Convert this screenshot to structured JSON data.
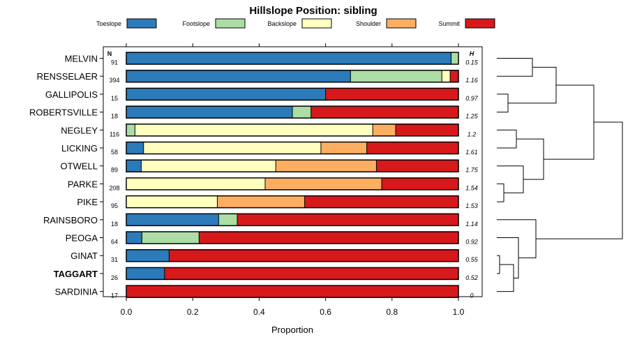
{
  "chart_data": {
    "type": "bar",
    "orientation": "horizontal-stacked",
    "title": "Hillslope Position: sibling",
    "xlabel": "Proportion",
    "ylabel": "",
    "xlim": [
      0,
      1
    ],
    "x_ticks": [
      "0.0",
      "0.2",
      "0.4",
      "0.6",
      "0.8",
      "1.0"
    ],
    "n_header": "N",
    "h_header": "H",
    "legend_position": "top",
    "bold_category": "TAGGART",
    "series": [
      {
        "name": "Toeslope",
        "color": "#2b7bba"
      },
      {
        "name": "Footslope",
        "color": "#abdda4"
      },
      {
        "name": "Backslope",
        "color": "#ffffbf"
      },
      {
        "name": "Shoulder",
        "color": "#fdae61"
      },
      {
        "name": "Summit",
        "color": "#d7191c"
      }
    ],
    "categories": [
      "MELVIN",
      "RENSSELAER",
      "GALLIPOLIS",
      "ROBERTSVILLE",
      "NEGLEY",
      "LICKING",
      "OTWELL",
      "PARKE",
      "PIKE",
      "RAINSBORO",
      "PEOGA",
      "GINAT",
      "TAGGART",
      "SARDINIA"
    ],
    "n": [
      "91",
      "394",
      "15",
      "18",
      "116",
      "58",
      "89",
      "208",
      "95",
      "18",
      "64",
      "31",
      "26",
      "17"
    ],
    "h": [
      "0.15",
      "1.16",
      "0.97",
      "1.25",
      "1.2",
      "1.61",
      "1.75",
      "1.54",
      "1.53",
      "1.14",
      "0.92",
      "0.55",
      "0.52",
      "0"
    ],
    "proportions": [
      [
        0.978,
        0.022,
        0,
        0,
        0
      ],
      [
        0.675,
        0.275,
        0.025,
        0,
        0.025
      ],
      [
        0.6,
        0,
        0,
        0,
        0.4
      ],
      [
        0.5,
        0.056,
        0,
        0,
        0.444
      ],
      [
        0,
        0.026,
        0.716,
        0.069,
        0.189
      ],
      [
        0.052,
        0,
        0.534,
        0.138,
        0.276
      ],
      [
        0.045,
        0,
        0.405,
        0.303,
        0.247
      ],
      [
        0,
        0,
        0.418,
        0.351,
        0.231
      ],
      [
        0,
        0,
        0.274,
        0.263,
        0.463
      ],
      [
        0.278,
        0.056,
        0,
        0,
        0.666
      ],
      [
        0.047,
        0.172,
        0,
        0,
        0.781
      ],
      [
        0.129,
        0,
        0,
        0,
        0.871
      ],
      [
        0.115,
        0,
        0,
        0,
        0.885
      ],
      [
        0,
        0,
        0,
        0,
        1.0
      ]
    ],
    "dendrogram_merges": [
      [
        "MELVIN",
        "RENSSELAER"
      ],
      [
        "GALLIPOLIS",
        "ROBERTSVILLE"
      ],
      [
        "MELVIN+RENSSELAER",
        "GALLIPOLIS+ROBERTSVILLE"
      ],
      [
        "NEGLEY",
        "LICKING"
      ],
      [
        "PARKE",
        "PIKE"
      ],
      [
        "OTWELL",
        "PARKE+PIKE"
      ],
      [
        "NEGLEY+LICKING",
        "OTWELL+PARKE+PIKE"
      ],
      [
        "UPPER-A",
        "UPPER-B"
      ],
      [
        "GINAT",
        "TAGGART"
      ],
      [
        "GINAT+TAGGART",
        "SARDINIA"
      ],
      [
        "PEOGA",
        "GINAT+TAGGART+SARDINIA"
      ],
      [
        "RAINSBORO",
        "PEOGA-GROUP"
      ],
      [
        "UPPER",
        "LOWER"
      ]
    ]
  }
}
